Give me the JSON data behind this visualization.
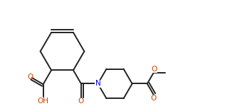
{
  "bg_color": "#ffffff",
  "line_color": "#222222",
  "o_color": "#cc4400",
  "n_color": "#0000cc",
  "lw": 1.4,
  "fs": 7.5,
  "xlim": [
    0.0,
    10.5
  ],
  "ylim": [
    0.5,
    5.5
  ]
}
